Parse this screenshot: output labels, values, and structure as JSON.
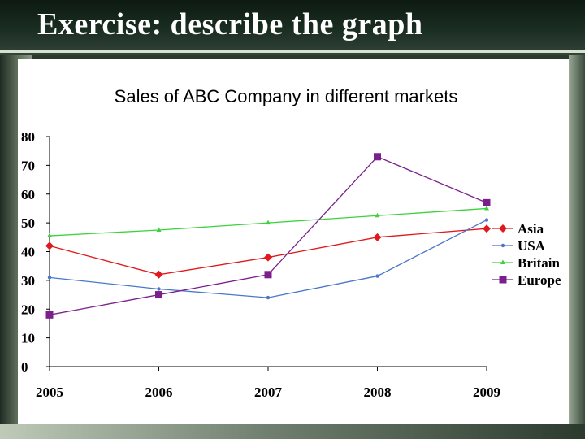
{
  "slide": {
    "title": "Exercise: describe the graph"
  },
  "chart_data": {
    "type": "line",
    "title": "Sales of ABC Company in different markets",
    "xlabel": "",
    "ylabel": "",
    "categories": [
      "2005",
      "2006",
      "2007",
      "2008",
      "2009"
    ],
    "ylim": [
      0,
      80
    ],
    "yticks": [
      "0",
      "10",
      "20",
      "30",
      "40",
      "50",
      "60",
      "70",
      "80"
    ],
    "grid": false,
    "legend": "right",
    "series": [
      {
        "name": "Asia",
        "color": "#e0191c",
        "marker": "diamond",
        "values": [
          42,
          32,
          38,
          45,
          48
        ]
      },
      {
        "name": "USA",
        "color": "#4a78c8",
        "marker": "circle",
        "values": [
          31,
          27,
          24,
          31.5,
          51
        ]
      },
      {
        "name": "Britain",
        "color": "#3cd23c",
        "marker": "triangle",
        "values": [
          45.5,
          47.5,
          50,
          52.5,
          55
        ]
      },
      {
        "name": "Europe",
        "color": "#7a1f8c",
        "marker": "square",
        "values": [
          18,
          25,
          32,
          73,
          57
        ]
      }
    ]
  }
}
